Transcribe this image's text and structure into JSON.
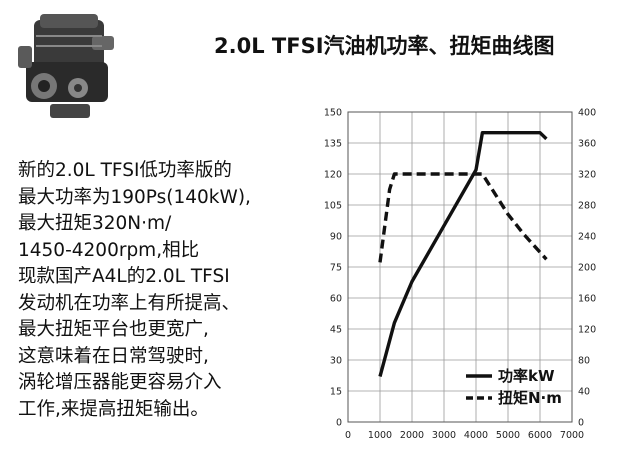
{
  "header": {
    "title": "2.0L TFSI汽油机功率、扭矩曲线图"
  },
  "description": {
    "lines": [
      "新的2.0L TFSI低功率版的",
      "最大功率为190Ps(140kW),",
      "最大扭矩320N·m/",
      "1450-4200rpm,相比",
      "现款国产A4L的2.0L TFSI",
      "发动机在功率上有所提高、",
      "最大扭矩平台也更宽广,",
      "这意味着在日常驾驶时,",
      "涡轮增压器能更容易介入",
      "工作,来提高扭矩输出。"
    ]
  },
  "engine_image": {
    "icon": "engine-photo"
  },
  "chart_data": {
    "type": "line",
    "title": "",
    "xlabel": "",
    "ylabel": "",
    "xlim": [
      0,
      7000
    ],
    "ylim_left": [
      0,
      150
    ],
    "ylim_right": [
      0,
      400
    ],
    "x_ticks": [
      "0",
      "1000",
      "2000",
      "3000",
      "4000",
      "5000",
      "6000",
      "7000"
    ],
    "y_left_ticks": [
      "0",
      "15",
      "30",
      "45",
      "60",
      "75",
      "90",
      "105",
      "120",
      "135",
      "150"
    ],
    "y_right_ticks": [
      "0",
      "40",
      "80",
      "120",
      "160",
      "200",
      "240",
      "280",
      "320",
      "360",
      "400"
    ],
    "grid": true,
    "legend_position": "bottom-right",
    "series": [
      {
        "name": "功率kW",
        "axis": "left",
        "style": "solid",
        "color": "#111111",
        "points": [
          [
            1000,
            22
          ],
          [
            1450,
            48
          ],
          [
            2000,
            68
          ],
          [
            3000,
            95
          ],
          [
            4000,
            122
          ],
          [
            4200,
            140
          ],
          [
            6000,
            140
          ],
          [
            6200,
            137
          ]
        ]
      },
      {
        "name": "扭矩N·m",
        "axis": "right",
        "style": "dashed",
        "color": "#111111",
        "points": [
          [
            1000,
            206
          ],
          [
            1300,
            300
          ],
          [
            1450,
            320
          ],
          [
            4200,
            320
          ],
          [
            5000,
            268
          ],
          [
            5500,
            242
          ],
          [
            6200,
            210
          ]
        ]
      }
    ]
  }
}
